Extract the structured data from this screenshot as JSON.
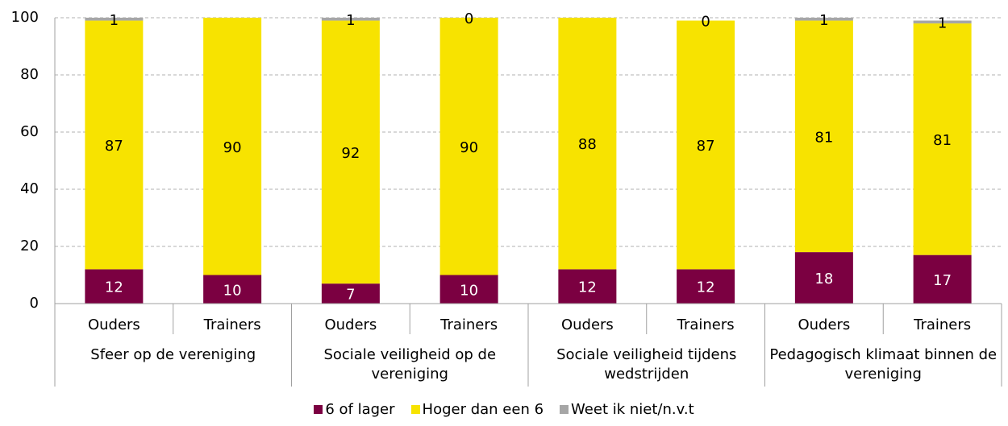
{
  "chart_data": {
    "type": "stacked-bar",
    "categories": [
      "Ouders",
      "Trainers",
      "Ouders",
      "Trainers",
      "Ouders",
      "Trainers",
      "Ouders",
      "Trainers"
    ],
    "groups": [
      "Sfeer op de vereniging",
      "Sociale veiligheid op de vereniging",
      "Sociale veiligheid tijdens wedstrijden",
      "Pedagogisch klimaat binnen de vereniging"
    ],
    "series": [
      {
        "name": "6 of lager",
        "color": "#7b0041",
        "values": [
          12,
          10,
          7,
          10,
          12,
          12,
          18,
          17
        ]
      },
      {
        "name": "Hoger dan een 6",
        "color": "#f7e300",
        "values": [
          87,
          90,
          92,
          90,
          88,
          87,
          81,
          81
        ]
      },
      {
        "name": "Weet ik niet/n.v.t",
        "color": "#a6a6a6",
        "values": [
          1,
          0,
          1,
          0,
          0,
          0,
          1,
          1
        ],
        "value_labels": [
          "1",
          null,
          "1",
          "0",
          null,
          "0",
          "1",
          "1"
        ]
      }
    ],
    "ylim": [
      0,
      100
    ],
    "yticks": [
      0,
      20,
      40,
      60,
      80,
      100
    ],
    "grid": true,
    "legend": "bottom"
  }
}
